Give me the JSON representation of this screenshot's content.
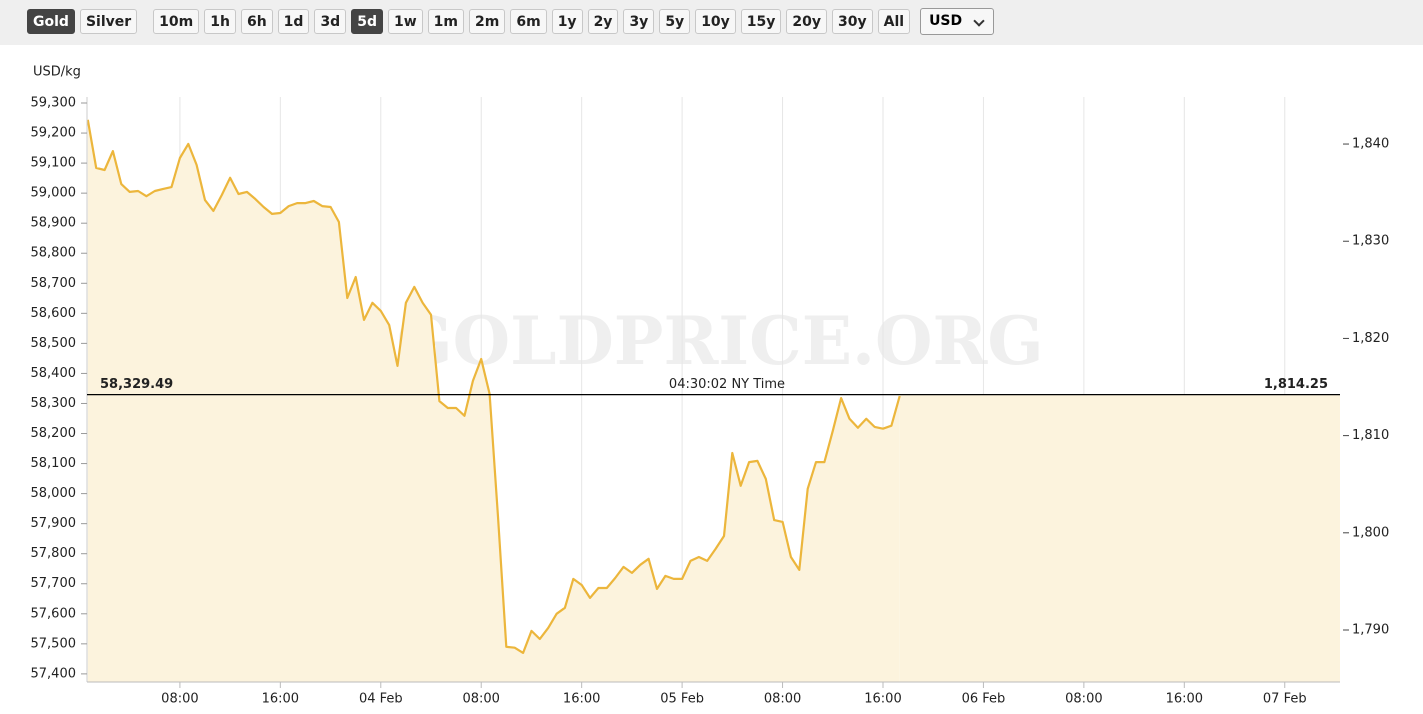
{
  "toolbar": {
    "metals": [
      {
        "label": "Gold",
        "active": true
      },
      {
        "label": "Silver",
        "active": false
      }
    ],
    "ranges": [
      {
        "label": "10m",
        "active": false
      },
      {
        "label": "1h",
        "active": false
      },
      {
        "label": "6h",
        "active": false
      },
      {
        "label": "1d",
        "active": false
      },
      {
        "label": "3d",
        "active": false
      },
      {
        "label": "5d",
        "active": true
      },
      {
        "label": "1w",
        "active": false
      },
      {
        "label": "1m",
        "active": false
      },
      {
        "label": "2m",
        "active": false
      },
      {
        "label": "6m",
        "active": false
      },
      {
        "label": "1y",
        "active": false
      },
      {
        "label": "2y",
        "active": false
      },
      {
        "label": "3y",
        "active": false
      },
      {
        "label": "5y",
        "active": false
      },
      {
        "label": "10y",
        "active": false
      },
      {
        "label": "15y",
        "active": false
      },
      {
        "label": "20y",
        "active": false
      },
      {
        "label": "30y",
        "active": false
      },
      {
        "label": "All",
        "active": false
      }
    ],
    "currency": "USD"
  },
  "chart_data": {
    "type": "area",
    "y_label": "USD/kg",
    "watermark": "GOLDPRICE.ORG",
    "color": "#ecb63c",
    "fill": "#fcf3dd",
    "grid": true,
    "x": [
      "03 Feb 00:40",
      "03 Feb 01:20",
      "03 Feb 02:00",
      "03 Feb 02:40",
      "03 Feb 03:20",
      "03 Feb 04:00",
      "03 Feb 04:40",
      "03 Feb 05:20",
      "03 Feb 06:00",
      "03 Feb 06:40",
      "03 Feb 07:20",
      "03 Feb 08:00",
      "03 Feb 08:40",
      "03 Feb 09:20",
      "03 Feb 10:00",
      "03 Feb 10:40",
      "03 Feb 11:20",
      "03 Feb 12:00",
      "03 Feb 12:40",
      "03 Feb 13:20",
      "03 Feb 14:00",
      "03 Feb 14:40",
      "03 Feb 15:20",
      "03 Feb 16:00",
      "03 Feb 16:40",
      "03 Feb 17:20",
      "03 Feb 18:00",
      "03 Feb 18:40",
      "03 Feb 19:20",
      "03 Feb 20:00",
      "03 Feb 20:40",
      "03 Feb 21:20",
      "03 Feb 22:00",
      "03 Feb 22:40",
      "03 Feb 23:20",
      "04 Feb 00:00",
      "04 Feb 00:40",
      "04 Feb 01:20",
      "04 Feb 02:00",
      "04 Feb 02:40",
      "04 Feb 03:20",
      "04 Feb 04:00",
      "04 Feb 04:40",
      "04 Feb 05:20",
      "04 Feb 06:00",
      "04 Feb 06:40",
      "04 Feb 07:20",
      "04 Feb 08:00",
      "04 Feb 08:40",
      "04 Feb 09:20",
      "04 Feb 10:00",
      "04 Feb 10:40",
      "04 Feb 11:20",
      "04 Feb 12:00",
      "04 Feb 12:40",
      "04 Feb 13:20",
      "04 Feb 14:00",
      "04 Feb 14:40",
      "04 Feb 15:20",
      "04 Feb 16:00",
      "04 Feb 16:40",
      "04 Feb 17:20",
      "04 Feb 18:00",
      "04 Feb 18:40",
      "04 Feb 19:20",
      "04 Feb 20:00",
      "04 Feb 20:40",
      "04 Feb 21:20",
      "04 Feb 22:00",
      "04 Feb 22:40",
      "04 Feb 23:20",
      "05 Feb 00:00",
      "05 Feb 00:40",
      "05 Feb 01:20",
      "05 Feb 02:00",
      "05 Feb 02:40",
      "05 Feb 03:20",
      "05 Feb 04:00",
      "05 Feb 04:40",
      "05 Feb 05:20",
      "05 Feb 06:00",
      "05 Feb 06:40",
      "05 Feb 07:20",
      "05 Feb 08:00",
      "05 Feb 08:40",
      "05 Feb 09:20",
      "05 Feb 10:00",
      "05 Feb 10:40",
      "05 Feb 11:20",
      "05 Feb 12:00",
      "05 Feb 12:40",
      "05 Feb 13:20",
      "05 Feb 14:00",
      "05 Feb 14:40",
      "05 Feb 15:20",
      "05 Feb 16:00",
      "05 Feb 16:40",
      "05 Feb 17:20"
    ],
    "values": [
      59244,
      59084,
      59077,
      59140,
      59030,
      59004,
      59007,
      58990,
      59007,
      59014,
      59020,
      59117,
      59164,
      59094,
      58977,
      58941,
      58994,
      59051,
      58997,
      59004,
      58981,
      58954,
      58931,
      58934,
      58957,
      58967,
      58967,
      58974,
      58957,
      58954,
      58904,
      58651,
      58721,
      58578,
      58635,
      58608,
      58561,
      58425,
      58635,
      58688,
      58635,
      58595,
      58308,
      58285,
      58285,
      58259,
      58375,
      58448,
      58332,
      57923,
      57490,
      57487,
      57470,
      57543,
      57516,
      57553,
      57600,
      57620,
      57716,
      57696,
      57653,
      57686,
      57686,
      57719,
      57756,
      57736,
      57763,
      57783,
      57683,
      57726,
      57716,
      57716,
      57776,
      57789,
      57776,
      57816,
      57859,
      58135,
      58026,
      58105,
      58109,
      58049,
      57912,
      57906,
      57789,
      57746,
      58016,
      58105,
      58105,
      58209,
      58318,
      58249,
      58219,
      58249,
      58222,
      58216,
      58226,
      58325
    ],
    "xlim": [
      "03 Feb 00:36",
      "07 Feb 04:24"
    ],
    "xticks": [
      {
        "value": "03 Feb 08:00",
        "label": "08:00"
      },
      {
        "value": "03 Feb 16:00",
        "label": "16:00"
      },
      {
        "value": "04 Feb 00:00",
        "label": "04 Feb"
      },
      {
        "value": "04 Feb 08:00",
        "label": "08:00"
      },
      {
        "value": "04 Feb 16:00",
        "label": "16:00"
      },
      {
        "value": "05 Feb 00:00",
        "label": "05 Feb"
      },
      {
        "value": "05 Feb 08:00",
        "label": "08:00"
      },
      {
        "value": "05 Feb 16:00",
        "label": "16:00"
      },
      {
        "value": "06 Feb 00:00",
        "label": "06 Feb"
      },
      {
        "value": "06 Feb 08:00",
        "label": "08:00"
      },
      {
        "value": "06 Feb 16:00",
        "label": "16:00"
      },
      {
        "value": "07 Feb 00:00",
        "label": "07 Feb"
      }
    ],
    "ylim": [
      57373,
      59320
    ],
    "yticks": [
      {
        "value": 57400,
        "label": "57,400"
      },
      {
        "value": 57500,
        "label": "57,500"
      },
      {
        "value": 57600,
        "label": "57,600"
      },
      {
        "value": 57700,
        "label": "57,700"
      },
      {
        "value": 57800,
        "label": "57,800"
      },
      {
        "value": 57900,
        "label": "57,900"
      },
      {
        "value": 58000,
        "label": "58,000"
      },
      {
        "value": 58100,
        "label": "58,100"
      },
      {
        "value": 58200,
        "label": "58,200"
      },
      {
        "value": 58300,
        "label": "58,300"
      },
      {
        "value": 58400,
        "label": "58,400"
      },
      {
        "value": 58500,
        "label": "58,500"
      },
      {
        "value": 58600,
        "label": "58,600"
      },
      {
        "value": 58700,
        "label": "58,700"
      },
      {
        "value": 58800,
        "label": "58,800"
      },
      {
        "value": 58900,
        "label": "58,900"
      },
      {
        "value": 59000,
        "label": "59,000"
      },
      {
        "value": 59100,
        "label": "59,100"
      },
      {
        "value": 59200,
        "label": "59,200"
      },
      {
        "value": 59300,
        "label": "59,300"
      }
    ],
    "y2lim": [
      1784.65,
      1844.84
    ],
    "y2ticks": [
      {
        "value": 1790,
        "label": "1,790"
      },
      {
        "value": 1800,
        "label": "1,800"
      },
      {
        "value": 1810,
        "label": "1,810"
      },
      {
        "value": 1820,
        "label": "1,820"
      },
      {
        "value": 1830,
        "label": "1,830"
      },
      {
        "value": 1840,
        "label": "1,840"
      }
    ],
    "current_price": {
      "value": 58329.49,
      "label": "58,329.49",
      "y2_value": 1814.25,
      "y2_label": "1,814.25",
      "time_label": "04:30:02 NY Time"
    }
  }
}
